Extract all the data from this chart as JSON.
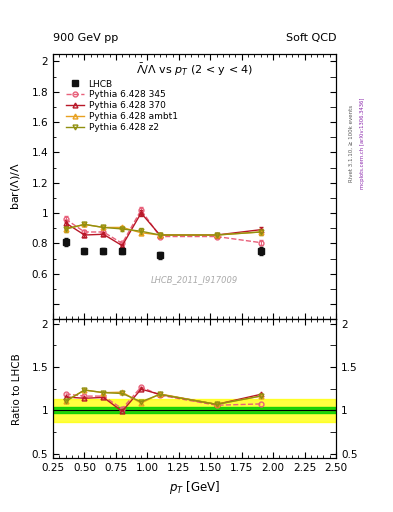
{
  "title_top_left": "900 GeV pp",
  "title_top_right": "Soft QCD",
  "plot_title": "$\\bar{\\Lambda}/\\Lambda$ vs $p_T$ (2 < y < 4)",
  "ylabel_main": "bar($\\Lambda$)/$\\Lambda$",
  "ylabel_ratio": "Ratio to LHCB",
  "xlabel": "$p_T$ [GeV]",
  "watermark": "LHCB_2011_I917009",
  "rivet_label": "Rivet 3.1.10, ≥ 100k events",
  "mcplots_label": "mcplots.cern.ch [arXiv:1306.3436]",
  "xlim": [
    0.25,
    2.5
  ],
  "ylim_main": [
    0.3,
    2.05
  ],
  "ylim_ratio": [
    0.45,
    2.05
  ],
  "lhcb_x": [
    0.35,
    0.5,
    0.65,
    0.8,
    1.1,
    1.9
  ],
  "lhcb_y": [
    0.81,
    0.75,
    0.75,
    0.75,
    0.72,
    0.75
  ],
  "lhcb_yerr": [
    0.025,
    0.02,
    0.02,
    0.02,
    0.025,
    0.025
  ],
  "p345_x": [
    0.35,
    0.5,
    0.65,
    0.8,
    0.95,
    1.1,
    1.55,
    1.9
  ],
  "p345_y": [
    0.96,
    0.875,
    0.875,
    0.8,
    1.02,
    0.845,
    0.845,
    0.805
  ],
  "p345_yerr": [
    0.018,
    0.012,
    0.012,
    0.012,
    0.018,
    0.012,
    0.012,
    0.018
  ],
  "p370_x": [
    0.35,
    0.5,
    0.65,
    0.8,
    0.95,
    1.1,
    1.55,
    1.9
  ],
  "p370_y": [
    0.935,
    0.855,
    0.86,
    0.785,
    1.0,
    0.855,
    0.855,
    0.89
  ],
  "p370_yerr": [
    0.018,
    0.012,
    0.012,
    0.012,
    0.018,
    0.012,
    0.012,
    0.018
  ],
  "pambt1_x": [
    0.35,
    0.5,
    0.65,
    0.8,
    0.95,
    1.1,
    1.55,
    1.9
  ],
  "pambt1_y": [
    0.895,
    0.925,
    0.905,
    0.905,
    0.87,
    0.855,
    0.855,
    0.875
  ],
  "pambt1_yerr": [
    0.018,
    0.012,
    0.012,
    0.012,
    0.018,
    0.012,
    0.012,
    0.018
  ],
  "pz2_x": [
    0.35,
    0.5,
    0.65,
    0.8,
    0.95,
    1.1,
    1.55,
    1.9
  ],
  "pz2_y": [
    0.895,
    0.925,
    0.905,
    0.895,
    0.88,
    0.855,
    0.855,
    0.875
  ],
  "pz2_yerr": [
    0.018,
    0.012,
    0.012,
    0.012,
    0.018,
    0.012,
    0.012,
    0.018
  ],
  "color_345": "#e8607a",
  "color_370": "#b81828",
  "color_ambt1": "#e8a020",
  "color_z2": "#909010",
  "color_lhcb": "#111111",
  "ratio_345_y": [
    1.19,
    1.165,
    1.165,
    1.02,
    1.27,
    1.175,
    1.06,
    1.075
  ],
  "ratio_370_y": [
    1.155,
    1.14,
    1.15,
    0.99,
    1.245,
    1.185,
    1.07,
    1.185
  ],
  "ratio_ambt1_y": [
    1.105,
    1.235,
    1.205,
    1.21,
    1.085,
    1.19,
    1.07,
    1.165
  ],
  "ratio_z2_y": [
    1.105,
    1.235,
    1.205,
    1.195,
    1.1,
    1.185,
    1.07,
    1.165
  ],
  "ratio_band_green_lo": 0.965,
  "ratio_band_green_hi": 1.035,
  "ratio_band_yellow_lo": 0.87,
  "ratio_band_yellow_hi": 1.13
}
